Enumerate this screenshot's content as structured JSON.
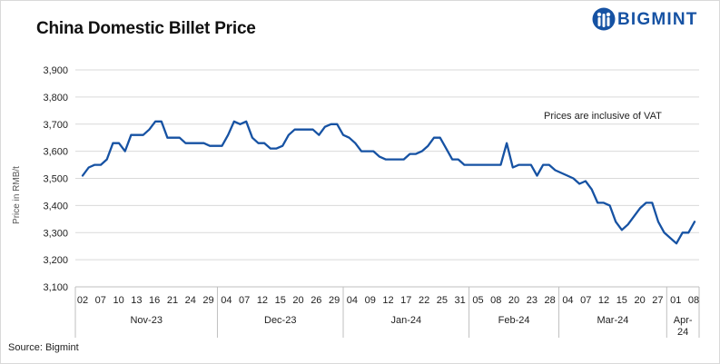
{
  "header": {
    "title": "China Domestic Billet Price",
    "brand": "BIGMINT",
    "brand_color": "#1652a3"
  },
  "footer": {
    "source": "Source: Bigmint"
  },
  "chart_data": {
    "type": "line",
    "title": "China Domestic Billet Price",
    "ylabel": "Price in RMB/t",
    "xlabel": "",
    "ylim": [
      3100,
      3900
    ],
    "yticks": [
      "3,100",
      "3,200",
      "3,300",
      "3,400",
      "3,500",
      "3,600",
      "3,700",
      "3,800",
      "3,900"
    ],
    "grid": true,
    "annotation": "Prices are inclusive of VAT",
    "line_color": "#1652a3",
    "x_ticks": [
      "02",
      "07",
      "10",
      "13",
      "16",
      "21",
      "24",
      "29",
      "04",
      "07",
      "12",
      "15",
      "20",
      "26",
      "29",
      "04",
      "09",
      "12",
      "17",
      "22",
      "25",
      "31",
      "05",
      "08",
      "20",
      "23",
      "28",
      "04",
      "07",
      "12",
      "15",
      "20",
      "27",
      "01",
      "08"
    ],
    "months": [
      "Nov-23",
      "Dec-23",
      "Jan-24",
      "Feb-24",
      "Mar-24",
      "Apr-24"
    ],
    "month_spans": [
      [
        0,
        8
      ],
      [
        8,
        15
      ],
      [
        15,
        22
      ],
      [
        22,
        27
      ],
      [
        27,
        33
      ],
      [
        33,
        35
      ]
    ],
    "series": [
      {
        "name": "Billet Price",
        "values": [
          3510,
          3540,
          3550,
          3550,
          3570,
          3630,
          3630,
          3600,
          3660,
          3660,
          3660,
          3680,
          3710,
          3710,
          3650,
          3650,
          3650,
          3630,
          3630,
          3630,
          3630,
          3620,
          3620,
          3620,
          3660,
          3710,
          3700,
          3710,
          3650,
          3630,
          3630,
          3610,
          3610,
          3620,
          3660,
          3680,
          3680,
          3680,
          3680,
          3660,
          3690,
          3700,
          3700,
          3660,
          3650,
          3630,
          3600,
          3600,
          3600,
          3580,
          3570,
          3570,
          3570,
          3570,
          3590,
          3590,
          3600,
          3620,
          3650,
          3650,
          3610,
          3570,
          3570,
          3550,
          3550,
          3550,
          3550,
          3550,
          3550,
          3550,
          3630,
          3540,
          3550,
          3550,
          3550,
          3510,
          3550,
          3550,
          3530,
          3520,
          3510,
          3500,
          3480,
          3490,
          3460,
          3410,
          3410,
          3400,
          3340,
          3310,
          3330,
          3360,
          3390,
          3410,
          3410,
          3340,
          3300,
          3280,
          3260,
          3300,
          3300,
          3340
        ]
      }
    ]
  }
}
